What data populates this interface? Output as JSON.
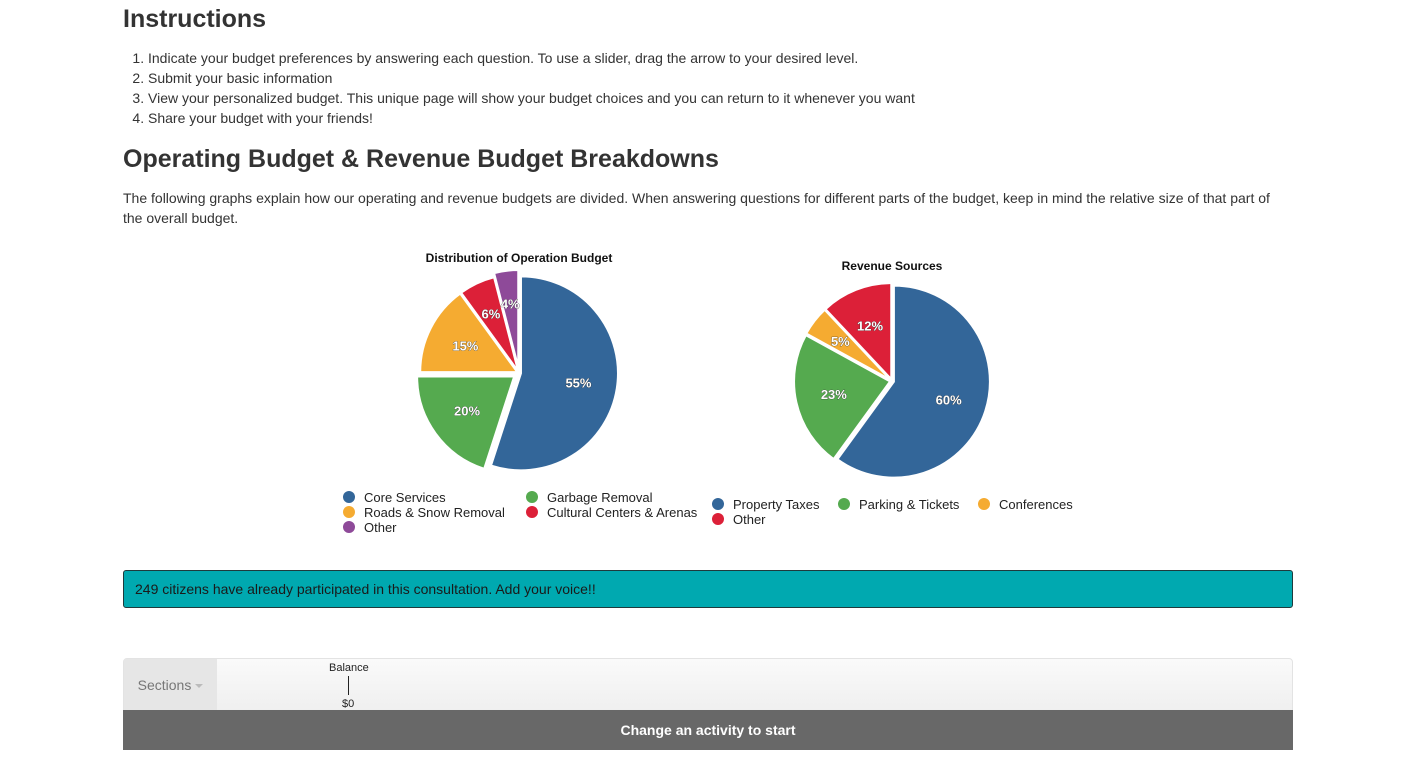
{
  "instructions": {
    "title": "Instructions",
    "steps": [
      "Indicate your budget preferences by answering each question. To use a slider, drag the arrow to your desired level.",
      "Submit your basic information",
      "View your personalized budget. This unique page will show your budget choices and you can return to it whenever you want",
      "Share your budget with your friends!"
    ]
  },
  "breakdown": {
    "title": "Operating Budget & Revenue Budget Breakdowns",
    "intro": "The following graphs explain how our operating and revenue budgets are divided. When answering questions for different parts of the budget, keep in mind the relative size of that part of the overall budget."
  },
  "chart_data": [
    {
      "type": "pie",
      "title": "Distribution of Operation Budget",
      "slices": [
        {
          "name": "Core Services",
          "value": 55,
          "label": "55%",
          "color": "#336699"
        },
        {
          "name": "Garbage Removal",
          "value": 20,
          "label": "20%",
          "color": "#55aa4f"
        },
        {
          "name": "Roads & Snow Removal",
          "value": 15,
          "label": "15%",
          "color": "#f5ab31"
        },
        {
          "name": "Cultural Centers & Arenas",
          "value": 6,
          "label": "6%",
          "color": "#dc2038"
        },
        {
          "name": "Other",
          "value": 4,
          "label": "4%",
          "color": "#8e4a99"
        }
      ],
      "legend_order": [
        "Core Services",
        "Garbage Removal",
        "Roads & Snow Removal",
        "Cultural Centers & Arenas",
        "Other"
      ],
      "legend": "bottom"
    },
    {
      "type": "pie",
      "title": "Revenue Sources",
      "slices": [
        {
          "name": "Property Taxes",
          "value": 60,
          "label": "60%",
          "color": "#336699"
        },
        {
          "name": "Parking & Tickets",
          "value": 23,
          "label": "23%",
          "color": "#55aa4f"
        },
        {
          "name": "Conferences",
          "value": 5,
          "label": "5%",
          "color": "#f5ab31"
        },
        {
          "name": "Other",
          "value": 12,
          "label": "12%",
          "color": "#dc2038"
        }
      ],
      "legend_order": [
        "Property Taxes",
        "Parking & Tickets",
        "Conferences",
        "Other"
      ],
      "legend": "bottom"
    }
  ],
  "callout": {
    "text": "249 citizens have already participated in this consultation. Add your voice!!",
    "color": "#00a9b0"
  },
  "navbar": {
    "sections_label": "Sections",
    "balance_label": "Balance",
    "balance_value": "$0"
  },
  "start_bar": {
    "label": "Change an activity to start"
  }
}
